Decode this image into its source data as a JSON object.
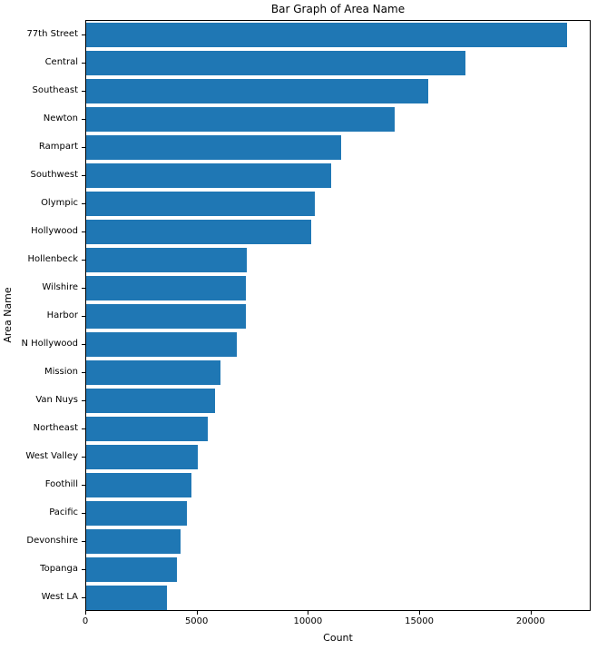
{
  "chart_data": {
    "type": "bar",
    "orientation": "horizontal",
    "title": "Bar Graph of Area Name",
    "xlabel": "Count",
    "ylabel": "Area Name",
    "categories": [
      "77th Street",
      "Central",
      "Southeast",
      "Newton",
      "Rampart",
      "Southwest",
      "Olympic",
      "Hollywood",
      "Hollenbeck",
      "Wilshire",
      "Harbor",
      "N Hollywood",
      "Mission",
      "Van Nuys",
      "Northeast",
      "West Valley",
      "Foothill",
      "Pacific",
      "Devonshire",
      "Topanga",
      "West LA"
    ],
    "values": [
      21670,
      17100,
      15440,
      13890,
      11480,
      11040,
      10310,
      10150,
      7230,
      7210,
      7190,
      6800,
      6070,
      5820,
      5500,
      5050,
      4730,
      4560,
      4240,
      4110,
      3630
    ],
    "xlim": [
      0,
      22700
    ],
    "x_ticks": [
      0,
      5000,
      10000,
      15000,
      20000
    ],
    "x_tick_labels": [
      "0",
      "5000",
      "10000",
      "15000",
      "20000"
    ],
    "bar_color": "#1f77b4",
    "spine_color": "#000000",
    "grid": false,
    "legend": null
  }
}
